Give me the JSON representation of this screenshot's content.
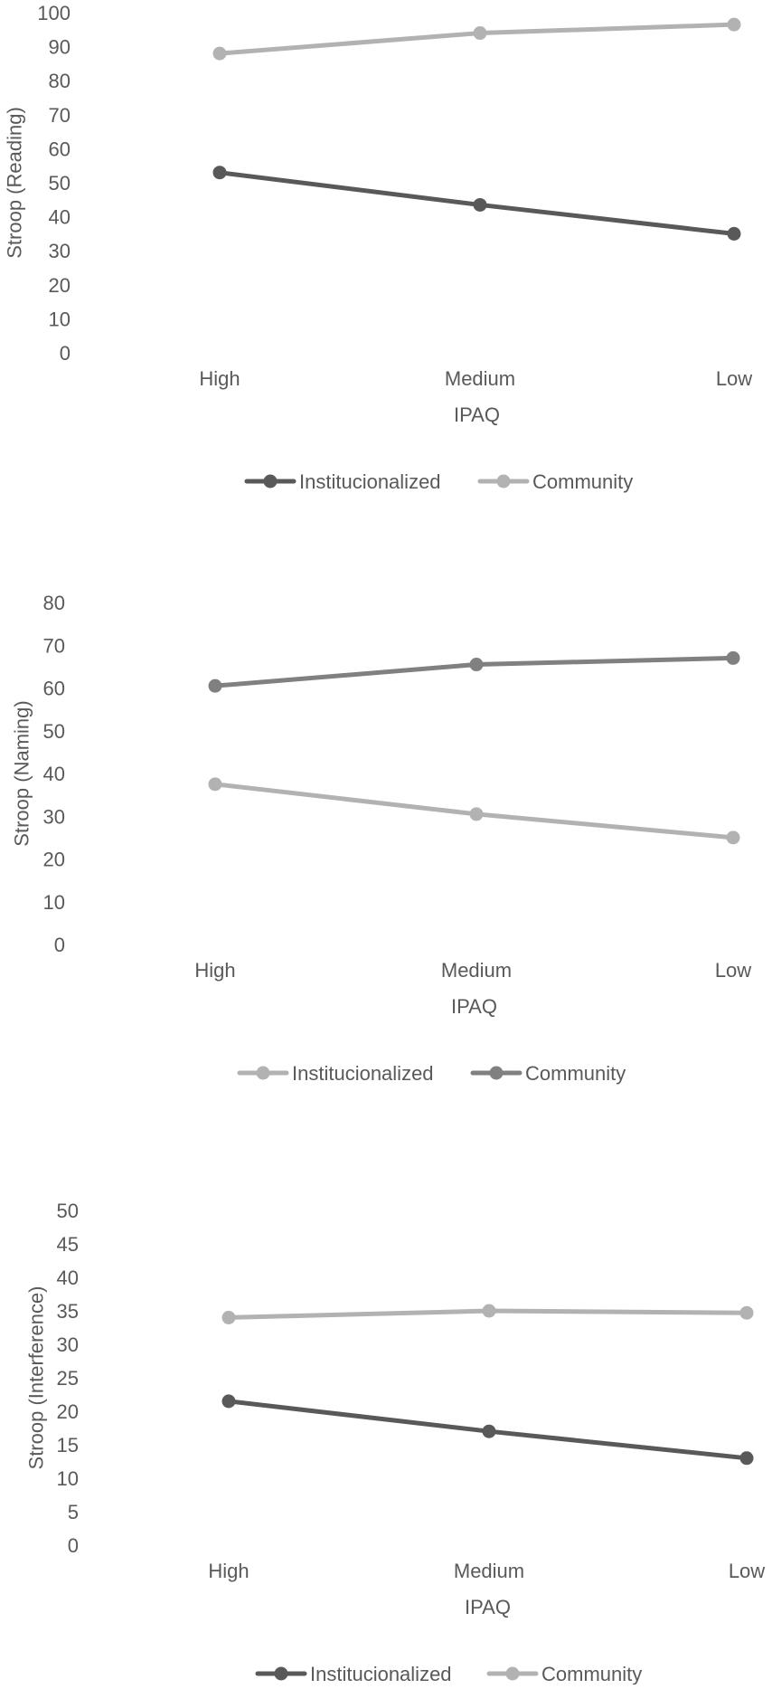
{
  "chart_data": [
    {
      "type": "line",
      "categories": [
        "High",
        "Medium",
        "Low"
      ],
      "xlabel": "IPAQ",
      "ylabel": "Stroop (Reading)",
      "ylim": [
        0,
        100
      ],
      "yticks": [
        0,
        10,
        20,
        30,
        40,
        50,
        60,
        70,
        80,
        90,
        100
      ],
      "grid": false,
      "legend": "bottom",
      "series": [
        {
          "name": "Institucionalized",
          "color": "#595959",
          "values": [
            53,
            43.5,
            35
          ]
        },
        {
          "name": "Community",
          "color": "#b2b2b2",
          "values": [
            88,
            94,
            96.5
          ]
        }
      ]
    },
    {
      "type": "line",
      "categories": [
        "High",
        "Medium",
        "Low"
      ],
      "xlabel": "IPAQ",
      "ylabel": "Stroop (Naming)",
      "ylim": [
        0,
        80
      ],
      "yticks": [
        0,
        10,
        20,
        30,
        40,
        50,
        60,
        70,
        80
      ],
      "grid": false,
      "legend": "bottom",
      "series": [
        {
          "name": "Institucionalized",
          "color": "#b2b2b2",
          "values": [
            37.5,
            30.5,
            25
          ]
        },
        {
          "name": "Community",
          "color": "#808080",
          "values": [
            60.5,
            65.5,
            67
          ]
        }
      ]
    },
    {
      "type": "line",
      "categories": [
        "High",
        "Medium",
        "Low"
      ],
      "xlabel": "IPAQ",
      "ylabel": "Stroop (Interference)",
      "ylim": [
        0,
        50
      ],
      "yticks": [
        0,
        5,
        10,
        15,
        20,
        25,
        30,
        35,
        40,
        45,
        50
      ],
      "grid": false,
      "legend": "bottom",
      "series": [
        {
          "name": "Institucionalized",
          "color": "#595959",
          "values": [
            21.5,
            17,
            13
          ]
        },
        {
          "name": "Community",
          "color": "#b2b2b2",
          "values": [
            34,
            35,
            34.7
          ]
        }
      ]
    }
  ]
}
